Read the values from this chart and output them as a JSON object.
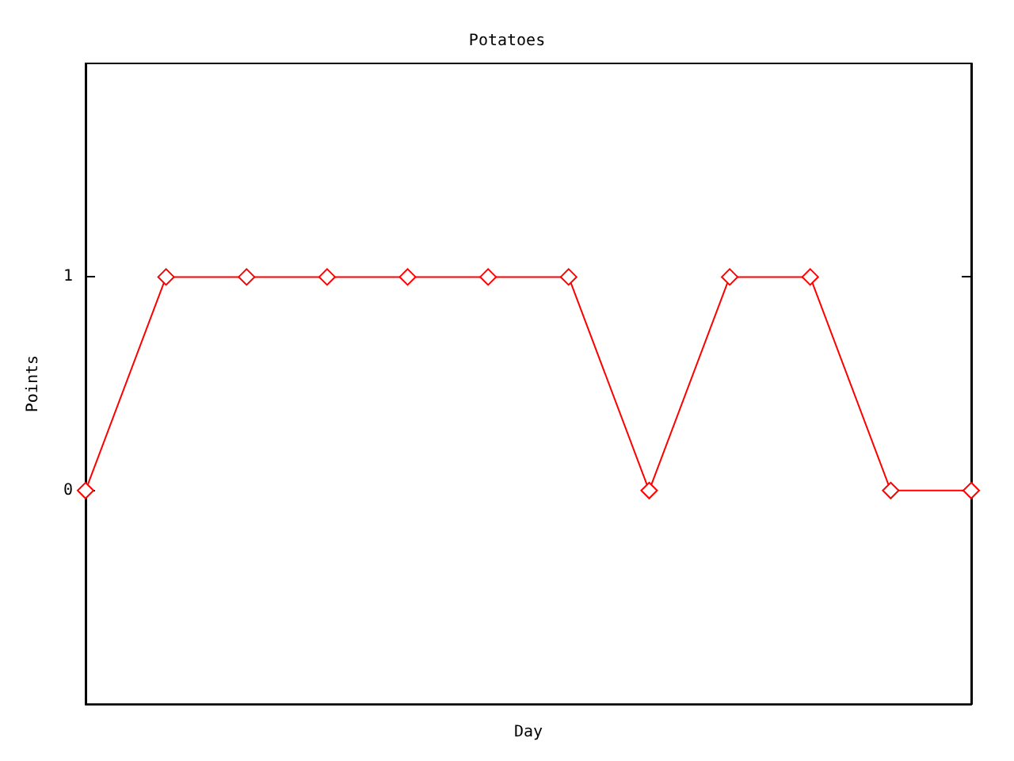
{
  "chart_data": {
    "type": "line",
    "title": "Potatoes",
    "xlabel": "Day",
    "ylabel": "Points",
    "categories": [
      null,
      null,
      null,
      null,
      null,
      null,
      null,
      null,
      null,
      null,
      null,
      null
    ],
    "series": [
      {
        "color": "#ff0000",
        "values": [
          0,
          1,
          1,
          1,
          1,
          1,
          1,
          0,
          1,
          1,
          0,
          0
        ]
      }
    ],
    "ylim": [
      -1,
      2
    ],
    "yticks": [
      0,
      1
    ],
    "grid": false,
    "marker": "diamond",
    "line_style": "solid"
  }
}
